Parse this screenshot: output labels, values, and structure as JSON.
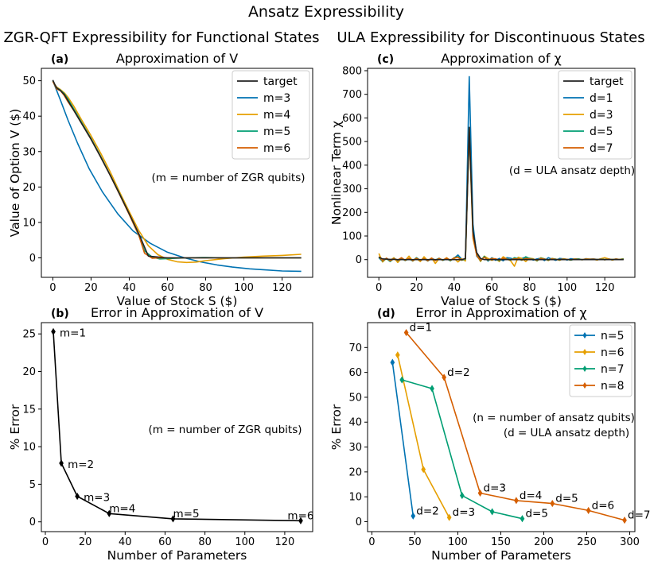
{
  "figure": {
    "title": "Ansatz Expressibility",
    "left_header": "ZGR-QFT Expressibility for Functional States",
    "right_header": "ULA Expressibility for Discontinuous States"
  },
  "chart_data": [
    {
      "id": "a",
      "type": "line",
      "panel_label": "(a)",
      "title": "Approximation of V",
      "xlabel": "Value of Stock S ($)",
      "ylabel": "Value of Option V ($)",
      "xlim": [
        -6,
        136
      ],
      "ylim": [
        -5.5,
        53.5
      ],
      "xticks": [
        0,
        20,
        40,
        60,
        80,
        100,
        120
      ],
      "yticks": [
        0,
        10,
        20,
        30,
        40,
        50
      ],
      "grid": false,
      "legend_position": "top-right",
      "annotation": "(m = number of ZGR qubits)",
      "series": [
        {
          "name": "m=3",
          "color": "#0072b2",
          "x": [
            0,
            4,
            8,
            13,
            19,
            26,
            34,
            42,
            51,
            60,
            69,
            77,
            86,
            94,
            103,
            111,
            120,
            130
          ],
          "y": [
            50,
            44.5,
            38.8,
            32.3,
            25.2,
            18.6,
            12.4,
            7.6,
            4.1,
            1.6,
            0,
            -1.1,
            -2.0,
            -2.6,
            -3.1,
            -3.4,
            -3.7,
            -3.8
          ]
        },
        {
          "name": "m=4",
          "color": "#e69f00",
          "x": [
            0,
            1,
            2,
            4,
            6,
            8,
            11,
            15,
            20,
            25,
            30,
            35,
            40,
            45,
            50,
            55,
            60,
            65,
            70,
            75,
            80,
            90,
            100,
            110,
            120,
            130
          ],
          "y": [
            50,
            49,
            48.2,
            47.5,
            46.6,
            45.3,
            42.8,
            39,
            34.5,
            29.6,
            24.3,
            18.5,
            13,
            7.7,
            3.4,
            0.9,
            -0.4,
            -1.1,
            -1.3,
            -1.2,
            -0.8,
            -0.2,
            0.2,
            0.5,
            0.7,
            1.0
          ]
        },
        {
          "name": "m=5",
          "color": "#009e73",
          "x": [
            0,
            1,
            2,
            4,
            6,
            8,
            11,
            15,
            20,
            25,
            30,
            35,
            40,
            45,
            48,
            52,
            56,
            60,
            70,
            80,
            90,
            100,
            110,
            120,
            130
          ],
          "y": [
            50,
            48.8,
            48,
            47.3,
            46.3,
            44.7,
            42,
            38.3,
            33.7,
            28.7,
            23.4,
            18,
            12.3,
            6.3,
            2,
            0.2,
            -0.3,
            -0.2,
            0,
            0.1,
            0,
            0,
            0,
            0,
            0
          ]
        },
        {
          "name": "m=6",
          "color": "#d55e00",
          "x": [
            0,
            1,
            2,
            4,
            6,
            8,
            11,
            15,
            20,
            25,
            30,
            35,
            40,
            45,
            48,
            52,
            56,
            60,
            70,
            80,
            90,
            100,
            110,
            120,
            130
          ],
          "y": [
            49.8,
            48.8,
            47.7,
            47.2,
            45.8,
            44,
            41.6,
            38,
            33.5,
            28.5,
            23.3,
            17.8,
            12.2,
            6.4,
            1.3,
            -0.1,
            0,
            0,
            0,
            0,
            0,
            0,
            0,
            0,
            0
          ]
        },
        {
          "name": "target",
          "color": "#222222",
          "x": [
            0,
            1,
            2,
            4,
            6,
            8,
            11,
            15,
            20,
            25,
            30,
            35,
            40,
            45,
            48,
            50,
            60,
            70,
            80,
            90,
            100,
            110,
            120,
            130
          ],
          "y": [
            50.2,
            49,
            48,
            47.2,
            46.1,
            44.3,
            41.6,
            38,
            33.5,
            28.5,
            23.3,
            17.9,
            12.4,
            6.8,
            3,
            0.5,
            0,
            0,
            0,
            0,
            0,
            0,
            0,
            0
          ]
        }
      ],
      "legend_order": [
        "target",
        "m=3",
        "m=4",
        "m=5",
        "m=6"
      ]
    },
    {
      "id": "b",
      "type": "line",
      "panel_label": "(b)",
      "title": "Error in Approximation of V",
      "xlabel": "Number of Parameters",
      "ylabel": "% Error",
      "xlim": [
        -2,
        134
      ],
      "ylim": [
        -1.3,
        26.5
      ],
      "xticks": [
        0,
        20,
        40,
        60,
        80,
        100,
        120
      ],
      "yticks": [
        0,
        5,
        10,
        15,
        20,
        25
      ],
      "grid": false,
      "annotation": "(m = number of ZGR qubits)",
      "series": [
        {
          "name": "",
          "color": "#000000",
          "x": [
            4,
            8,
            16,
            32,
            64,
            128
          ],
          "y": [
            25.3,
            7.8,
            3.4,
            1.1,
            0.4,
            0.15
          ],
          "labels": [
            "m=1",
            "m=2",
            "m=3",
            "m=4",
            "m=5",
            "m=6"
          ]
        }
      ]
    },
    {
      "id": "c",
      "type": "line",
      "panel_label": "(c)",
      "title": "Approximation of χ",
      "xlabel": "Value of Stock S ($)",
      "ylabel": "Nonlinear Term χ",
      "xlim": [
        -6,
        136
      ],
      "ylim": [
        -75,
        810
      ],
      "xticks": [
        0,
        20,
        40,
        60,
        80,
        100,
        120
      ],
      "yticks": [
        0,
        100,
        200,
        300,
        400,
        500,
        600,
        700,
        800
      ],
      "grid": false,
      "legend_position": "top-right",
      "annotation": "(d = ULA ansatz depth)",
      "series": [
        {
          "name": "d=1",
          "color": "#0072b2",
          "x": [
            0,
            2,
            4,
            6,
            8,
            10,
            12,
            14,
            16,
            18,
            20,
            22,
            24,
            26,
            28,
            30,
            32,
            34,
            36,
            38,
            40,
            42,
            44,
            46,
            48,
            50,
            52,
            54,
            56,
            58,
            60,
            62,
            64,
            66,
            68,
            70,
            72,
            74,
            76,
            78,
            80,
            82,
            84,
            86,
            88,
            90,
            92,
            94,
            96,
            98,
            100,
            102,
            104,
            106,
            108,
            110,
            112,
            114,
            116,
            118,
            120,
            122,
            124,
            126,
            128,
            130
          ],
          "y": [
            8,
            -8,
            5,
            -3,
            6,
            -5,
            4,
            -2,
            5,
            -6,
            8,
            -4,
            3,
            -5,
            6,
            -2,
            5,
            -3,
            4,
            -4,
            6,
            20,
            2,
            -3,
            775,
            150,
            15,
            -4,
            12,
            -6,
            8,
            -3,
            5,
            -5,
            8,
            6,
            0,
            7,
            5,
            10,
            4,
            -2,
            3,
            6,
            -4,
            8,
            2,
            -3,
            5,
            3,
            -2,
            4,
            2,
            3,
            -1,
            4,
            2,
            3,
            1,
            2,
            0,
            3,
            -2,
            3,
            0,
            2
          ]
        },
        {
          "name": "d=3",
          "color": "#e69f00",
          "x": [
            0,
            2,
            4,
            6,
            8,
            10,
            12,
            14,
            16,
            18,
            20,
            22,
            24,
            26,
            28,
            30,
            32,
            34,
            36,
            38,
            40,
            42,
            44,
            46,
            48,
            50,
            52,
            54,
            56,
            58,
            60,
            62,
            64,
            66,
            68,
            70,
            72,
            74,
            76,
            78,
            80,
            82,
            84,
            86,
            88,
            90,
            92,
            94,
            96,
            98,
            100,
            102,
            104,
            106,
            108,
            110,
            112,
            114,
            116,
            118,
            120,
            122,
            124,
            126,
            128,
            130
          ],
          "y": [
            26,
            -10,
            6,
            -4,
            8,
            -12,
            5,
            -3,
            15,
            -6,
            4,
            -8,
            12,
            -5,
            7,
            -16,
            4,
            -3,
            8,
            -4,
            5,
            -10,
            4,
            -6,
            540,
            90,
            20,
            -8,
            15,
            5,
            -3,
            4,
            -8,
            12,
            3,
            -5,
            -28,
            10,
            5,
            -8,
            6,
            4,
            -6,
            8,
            3,
            -4,
            5,
            2,
            -3,
            4,
            1,
            -2,
            3,
            2,
            -1,
            3,
            2,
            1,
            -2,
            4,
            8,
            3,
            -2,
            2,
            1,
            4
          ]
        },
        {
          "name": "d=5",
          "color": "#009e73",
          "x": [
            0,
            2,
            4,
            6,
            8,
            10,
            12,
            14,
            16,
            18,
            20,
            22,
            24,
            26,
            28,
            30,
            32,
            34,
            36,
            38,
            40,
            42,
            44,
            46,
            48,
            50,
            52,
            54,
            56,
            58,
            60,
            62,
            64,
            66,
            68,
            70,
            72,
            74,
            76,
            78,
            80,
            82,
            84,
            86,
            88,
            90,
            92,
            94,
            96,
            98,
            100,
            102,
            104,
            106,
            108,
            110,
            112,
            114,
            116,
            118,
            120,
            122,
            124,
            126,
            128,
            130
          ],
          "y": [
            10,
            -6,
            4,
            -8,
            5,
            -2,
            6,
            -4,
            3,
            -5,
            8,
            -3,
            4,
            -6,
            5,
            -2,
            6,
            -3,
            4,
            -5,
            8,
            12,
            -3,
            2,
            560,
            120,
            22,
            -5,
            14,
            -4,
            6,
            2,
            -4,
            5,
            3,
            -2,
            8,
            4,
            -3,
            12,
            5,
            2,
            -4,
            6,
            3,
            -2,
            4,
            2,
            -1,
            3,
            1,
            -2,
            2,
            3,
            0,
            2,
            1,
            2,
            0,
            3,
            -1,
            2,
            1,
            2,
            0,
            3
          ]
        },
        {
          "name": "d=7",
          "color": "#d55e00",
          "x": [
            0,
            2,
            4,
            6,
            8,
            10,
            12,
            14,
            16,
            18,
            20,
            22,
            24,
            26,
            28,
            30,
            32,
            34,
            36,
            38,
            40,
            42,
            44,
            46,
            48,
            50,
            52,
            54,
            56,
            58,
            60,
            62,
            64,
            66,
            68,
            70,
            72,
            74,
            76,
            78,
            80,
            82,
            84,
            86,
            88,
            90,
            92,
            94,
            96,
            98,
            100,
            102,
            104,
            106,
            108,
            110,
            112,
            114,
            116,
            118,
            120,
            122,
            124,
            126,
            128,
            130
          ],
          "y": [
            12,
            -4,
            6,
            -5,
            4,
            -2,
            8,
            -3,
            5,
            -4,
            6,
            -3,
            4,
            -5,
            6,
            -4,
            5,
            -2,
            6,
            -3,
            7,
            10,
            -2,
            4,
            560,
            100,
            18,
            -3,
            10,
            -2,
            5,
            3,
            -2,
            6,
            2,
            -1,
            4,
            3,
            -2,
            5,
            3,
            1,
            -2,
            4,
            2,
            -1,
            3,
            1,
            0,
            2,
            1,
            -1,
            2,
            1,
            0,
            2,
            1,
            2,
            0,
            2,
            -1,
            2,
            0,
            2,
            0,
            1
          ]
        },
        {
          "name": "target",
          "color": "#222222",
          "x": [
            0,
            2,
            4,
            6,
            8,
            10,
            20,
            30,
            40,
            44,
            46,
            48,
            50,
            52,
            54,
            56,
            60,
            70,
            80,
            90,
            100,
            110,
            120,
            130
          ],
          "y": [
            10,
            3,
            2,
            1,
            1,
            0,
            0,
            0,
            0,
            0,
            5,
            560,
            120,
            30,
            5,
            0,
            0,
            0,
            0,
            0,
            0,
            0,
            0,
            0
          ]
        }
      ],
      "legend_order": [
        "target",
        "d=1",
        "d=3",
        "d=5",
        "d=7"
      ]
    },
    {
      "id": "d",
      "type": "line",
      "panel_label": "(d)",
      "title": "Error in Approximation of χ",
      "xlabel": "Number of Parameters",
      "ylabel": "% Error",
      "xlim": [
        -5,
        306
      ],
      "ylim": [
        -4,
        80
      ],
      "xticks": [
        0,
        50,
        100,
        150,
        200,
        250,
        300
      ],
      "yticks": [
        0,
        10,
        20,
        30,
        40,
        50,
        60,
        70
      ],
      "grid": false,
      "legend_position": "top-right",
      "annotation": [
        "(n = number of ansatz qubits)",
        "(d = ULA ansatz depth)"
      ],
      "series": [
        {
          "name": "n=5",
          "color": "#0072b2",
          "x": [
            24,
            48
          ],
          "y": [
            64,
            2.3
          ]
        },
        {
          "name": "n=6",
          "color": "#e69f00",
          "x": [
            30,
            60,
            90
          ],
          "y": [
            67,
            21,
            1.7
          ]
        },
        {
          "name": "n=7",
          "color": "#009e73",
          "x": [
            35,
            70,
            105,
            140,
            175
          ],
          "y": [
            57,
            53.5,
            10.5,
            4,
            1.2
          ]
        },
        {
          "name": "n=8",
          "color": "#d55e00",
          "x": [
            40,
            84,
            126,
            168,
            210,
            252,
            294
          ],
          "y": [
            76,
            58,
            11.5,
            8.5,
            7.3,
            4.5,
            0.6
          ]
        }
      ],
      "point_labels": [
        {
          "text": "d=1",
          "x": 40,
          "y": 76
        },
        {
          "text": "d=2",
          "x": 84,
          "y": 58
        },
        {
          "text": "d=2",
          "x": 48,
          "y": 2.3
        },
        {
          "text": "d=3",
          "x": 90,
          "y": 1.7
        },
        {
          "text": "d=3",
          "x": 126,
          "y": 11.5
        },
        {
          "text": "d=4",
          "x": 168,
          "y": 8.5
        },
        {
          "text": "d=5",
          "x": 210,
          "y": 7.3
        },
        {
          "text": "d=5",
          "x": 175,
          "y": 1.2
        },
        {
          "text": "d=6",
          "x": 252,
          "y": 4.5
        },
        {
          "text": "d=7",
          "x": 294,
          "y": 0.6
        }
      ],
      "legend_order": [
        "n=5",
        "n=6",
        "n=7",
        "n=8"
      ]
    }
  ]
}
